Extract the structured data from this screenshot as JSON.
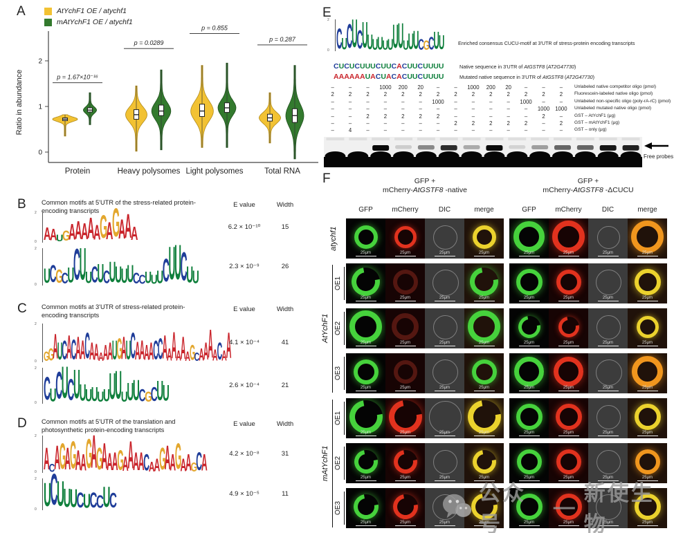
{
  "figure": {
    "bg": "#ffffff"
  },
  "panelA": {
    "label": "A"
  },
  "chart_data": {
    "type": "violin",
    "title": "",
    "ylabel": "Ratio in abundance",
    "ylim": [
      -0.3,
      2.6
    ],
    "yticks": [
      0,
      1,
      2
    ],
    "grid": false,
    "legend_position": "top-left",
    "categories": [
      "Protein",
      "Heavy polysomes",
      "Light polysomes",
      "Total RNA"
    ],
    "series": [
      {
        "name": "AtYchF1 OE / atychf1",
        "color": "#F2C233",
        "stroke": "#b08a1a",
        "violins": [
          {
            "category": "Protein",
            "median": 0.72,
            "q1": 0.69,
            "q3": 0.75,
            "min": 0.35,
            "max": 0.82,
            "width": 1.0
          },
          {
            "category": "Heavy polysomes",
            "median": 0.82,
            "q1": 0.72,
            "q3": 0.93,
            "min": 0.02,
            "max": 1.45,
            "width": 0.85
          },
          {
            "category": "Light polysomes",
            "median": 0.9,
            "q1": 0.78,
            "q3": 1.05,
            "min": 0.1,
            "max": 1.9,
            "width": 0.9
          },
          {
            "category": "Total RNA",
            "median": 0.75,
            "q1": 0.68,
            "q3": 0.83,
            "min": 0.2,
            "max": 1.3,
            "width": 0.85
          }
        ]
      },
      {
        "name": "mAtYchF1 OE / atychf1",
        "color": "#337A2E",
        "stroke": "#1e4f1c",
        "violins": [
          {
            "category": "Protein",
            "median": 0.92,
            "q1": 0.88,
            "q3": 0.97,
            "min": 0.6,
            "max": 1.3,
            "width": 0.5
          },
          {
            "category": "Heavy polysomes",
            "median": 0.9,
            "q1": 0.8,
            "q3": 1.03,
            "min": 0.05,
            "max": 1.8,
            "width": 0.75
          },
          {
            "category": "Light polysomes",
            "median": 0.97,
            "q1": 0.87,
            "q3": 1.08,
            "min": 0.1,
            "max": 1.95,
            "width": 0.7
          },
          {
            "category": "Total RNA",
            "median": 0.8,
            "q1": 0.65,
            "q3": 0.95,
            "min": -0.15,
            "max": 1.9,
            "width": 0.7
          }
        ]
      }
    ],
    "pvalues": [
      {
        "category": "Protein",
        "text": "p = 1.67×10⁻¹⁶"
      },
      {
        "category": "Heavy polysomes",
        "text": "p = 0.0289"
      },
      {
        "category": "Light polysomes",
        "text": "p = 0.855"
      },
      {
        "category": "Total RNA",
        "text": "p = 0.287"
      }
    ]
  },
  "motif_panels": [
    {
      "letter": "B",
      "title": "Common motifs at 5'UTR of the stress-related protein-encoding transcripts",
      "col_evalue": "E value",
      "col_width": "Width",
      "motifs": [
        {
          "evalue": "6.2 × 10⁻¹⁰",
          "width": "15",
          "seq": "AAUGAAAAAGAGAAA",
          "heights": [
            0.85,
            0.8,
            0.45,
            0.7,
            1.05,
            1.2,
            1.1,
            1.4,
            1.0,
            1.55,
            1.15,
            1.9,
            1.3,
            1.6,
            0.9
          ]
        },
        {
          "evalue": "2.3 × 10⁻⁹",
          "width": "26",
          "seq": "UCGCUCUUCUCUUUUCCUUUCUUCUU",
          "heights": [
            0.8,
            0.95,
            0.75,
            0.6,
            0.85,
            1.7,
            1.75,
            0.65,
            0.9,
            1.0,
            0.7,
            1.1,
            0.9,
            0.8,
            0.95,
            0.6,
            0.5,
            0.65,
            0.5,
            0.7,
            1.25,
            1.8,
            1.9,
            1.55,
            0.9,
            0.7
          ]
        }
      ]
    },
    {
      "letter": "C",
      "title": "Common motifs at 3'UTR of stress-related protein-encoding transcripts",
      "col_evalue": "E value",
      "col_width": "Width",
      "motifs": [
        {
          "evalue": "4.1 × 10⁻⁴",
          "width": "41",
          "seq": "GGAUCACAACAAAAAUGAUCAAAACCAAAAAAGCAAAACAA",
          "heights": [
            0.5,
            0.65,
            1.3,
            0.9,
            1.0,
            1.25,
            1.05,
            1.2,
            1.0,
            1.35,
            0.9,
            0.85,
            0.45,
            0.8,
            0.9,
            1.0,
            1.1,
            1.2,
            1.0,
            1.35,
            0.95,
            1.0,
            0.8,
            0.9,
            1.0,
            1.1,
            1.25,
            0.65,
            1.4,
            0.55,
            1.2,
            0.5,
            0.8,
            0.45,
            0.65,
            0.9,
            1.5,
            0.6,
            0.9,
            0.55,
            1.35
          ]
        },
        {
          "evalue": "2.6 × 10⁻⁴",
          "width": "21",
          "seq": "CUCUCUUUUUUUUUUUCGCUU",
          "heights": [
            1.3,
            0.75,
            1.55,
            1.8,
            1.2,
            1.65,
            0.95,
            0.7,
            0.8,
            0.6,
            0.7,
            1.5,
            1.6,
            0.6,
            1.0,
            1.15,
            0.7,
            0.6,
            0.8,
            1.1,
            0.9
          ]
        }
      ]
    },
    {
      "letter": "D",
      "title": "Common motifs at 5'UTR of the translation and photosynthetic protein-encoding transcripts",
      "col_evalue": "E value",
      "col_width": "Width",
      "motifs": [
        {
          "evalue": "4.2 × 10⁻⁸",
          "width": "31",
          "seq": "ACAGAGAAGAGAAAGAAAACAAGAAGAAGCA",
          "heights": [
            1.2,
            0.45,
            1.3,
            1.4,
            1.2,
            1.5,
            1.1,
            0.9,
            1.6,
            1.8,
            1.2,
            1.4,
            0.95,
            1.0,
            1.1,
            0.8,
            1.5,
            1.0,
            1.0,
            0.9,
            0.55,
            0.7,
            1.2,
            1.3,
            0.9,
            1.4,
            0.7,
            0.9,
            0.5,
            1.0,
            0.9
          ]
        },
        {
          "evalue": "4.9 × 10⁻⁵",
          "width": "11",
          "seq": "UCUUUCUCCUC",
          "heights": [
            1.5,
            2.0,
            1.6,
            1.2,
            1.15,
            1.0,
            0.9,
            1.0,
            0.8,
            1.3,
            0.95
          ]
        }
      ]
    }
  ],
  "panelE": {
    "label": "E",
    "logo": {
      "seq": "CUCUCUUUUUUUUUUUCGCUU",
      "heights": [
        1.3,
        0.75,
        1.55,
        1.8,
        1.2,
        1.65,
        0.95,
        0.7,
        0.8,
        0.6,
        0.7,
        1.5,
        1.6,
        0.6,
        1.0,
        1.15,
        0.7,
        0.6,
        0.8,
        1.1,
        0.9
      ],
      "caption": "Enriched consensus CUCU-motif at 3'UTR of stress-protein encoding transcripts"
    },
    "native": {
      "seq": "CUCUCUUUCUUCACUUCUUUU",
      "caption_pre": "Native sequence in 3'UTR of ",
      "gene": "AtGSTF8",
      "accession": "AT2G47730"
    },
    "mutated": {
      "seq": "AAAAAAUACUACACUUCUUUU",
      "caption_pre": "Mutated native sequence in 3'UTR of ",
      "gene": "AtGSTF8",
      "accession": "AT2G47730"
    },
    "assay_table": {
      "rows": [
        {
          "label": "Unlabeled native competitor oligo (pmol)",
          "values": [
            "–",
            "–",
            "–",
            "1000",
            "200",
            "20",
            "–",
            "–",
            "1000",
            "200",
            "20",
            "–",
            "–",
            "–"
          ]
        },
        {
          "label": "Fluorescein-labeled native oligo (pmol)",
          "values": [
            "2",
            "2",
            "2",
            "2",
            "2",
            "2",
            "2",
            "2",
            "2",
            "2",
            "2",
            "2",
            "2",
            "2"
          ]
        },
        {
          "label": "Unlabeled non-specific oligo (poly-rA-rC) (pmol)",
          "values": [
            "–",
            "–",
            "–",
            "–",
            "–",
            "–",
            "1000",
            "–",
            "–",
            "–",
            "–",
            "1000",
            "–",
            "–"
          ]
        },
        {
          "label": "Unlabeled mutated native oligo (pmol)",
          "values": [
            "–",
            "–",
            "–",
            "–",
            "–",
            "–",
            "–",
            "–",
            "–",
            "–",
            "–",
            "–",
            "1000",
            "1000"
          ]
        },
        {
          "label": "GST – AtYchF1  (μg)",
          "values": [
            "–",
            "–",
            "2",
            "2",
            "2",
            "2",
            "2",
            "–",
            "–",
            "–",
            "–",
            "–",
            "2",
            "–"
          ]
        },
        {
          "label": "GST – mAtYchF1 (μg)",
          "values": [
            "–",
            "–",
            "–",
            "–",
            "–",
            "–",
            "–",
            "2",
            "2",
            "2",
            "2",
            "2",
            "–",
            "2"
          ]
        },
        {
          "label": "GST – only  (μg)",
          "values": [
            "–",
            "4",
            "–",
            "–",
            "–",
            "–",
            "–",
            "–",
            "–",
            "–",
            "–",
            "–",
            "–",
            "–"
          ]
        }
      ]
    },
    "gel": {
      "band_intensity": [
        0,
        0,
        1,
        0.15,
        0.45,
        0.85,
        0.3,
        1,
        0.12,
        0.35,
        0.6,
        0.6,
        0.95,
        0.9
      ],
      "free_probes_label": "Free probes"
    }
  },
  "panelF": {
    "label": "F",
    "groups": [
      {
        "line1": "GFP +",
        "line2_pre": "mCherry-",
        "line2_gene": "AtGSTF8",
        "line2_suf": " -native"
      },
      {
        "line1": "GFP +",
        "line2_pre": "mCherry-",
        "line2_gene": "AtGSTF8",
        "line2_suf": " -ΔCUCU"
      }
    ],
    "channels": [
      "GFP",
      "mCherry",
      "DIC",
      "merge"
    ],
    "scale_bar": "25μm",
    "row_groups": [
      {
        "label": "atychf1",
        "rows": [
          {
            "sub": "",
            "native": [
              "ring green 0.5",
              "ring red 0.45",
              "dic 0.5",
              "ring yellow 0.5"
            ],
            "dcucu": [
              "ring green 0.8",
              "ring red 0.85",
              "dic 0.45",
              "ring orange 0.85"
            ]
          }
        ]
      },
      {
        "label": "AtYchF1",
        "rows": [
          {
            "sub": "OE1",
            "native": [
              "crescent green 0.7",
              "ring dimred 0.55",
              "dic 0.6",
              "crescent green 0.7"
            ],
            "dcucu": [
              "ring green 0.6",
              "ring red 0.55",
              "dic 0.55",
              "ring yellow 0.6"
            ]
          },
          {
            "sub": "OE2",
            "native": [
              "ring green 0.85",
              "ring dimred 0.65",
              "dic 0.5",
              "ring green 0.85"
            ],
            "dcucu": [
              "crescent green 0.45",
              "crescent red 0.4",
              "dic 0.5",
              "ring yellow 0.45"
            ]
          },
          {
            "sub": "OE3",
            "native": [
              "ring green 0.55",
              "ring dimred 0.5",
              "dic 0.55",
              "ring green 0.55"
            ],
            "dcucu": [
              "ring green 0.75",
              "ring red 0.75",
              "dic 0.6",
              "ring orange 0.8"
            ]
          }
        ]
      },
      {
        "label": "mAtYchF1",
        "rows": [
          {
            "sub": "OE1",
            "native": [
              "crescent green 0.9",
              "crescent red 0.9",
              "dic 0.85",
              "crescent yellow 0.9"
            ],
            "dcucu": [
              "ring green 0.6",
              "ring red 0.6",
              "dic 0.5",
              "ring yellow 0.6"
            ]
          },
          {
            "sub": "OE2",
            "native": [
              "crescent green 0.5",
              "crescent red 0.5",
              "dic 0.5",
              "crescent yellow 0.5"
            ],
            "dcucu": [
              "ring green 0.55",
              "ring red 0.55",
              "dic 0.5",
              "ring orange 0.55"
            ]
          },
          {
            "sub": "OE3",
            "native": [
              "crescent green 0.55",
              "crescent red 0.55",
              "dic 0.55",
              "crescent yellow 0.6"
            ],
            "dcucu": [
              "ring green 0.6",
              "ring red 0.6",
              "dic 0.55",
              "ring yellow 0.6"
            ]
          }
        ]
      }
    ]
  },
  "watermark": {
    "icon": "wechat-icon",
    "text_left": "公众号",
    "dash": "—",
    "text_right": "新使生物",
    "color": "#9c9c9c"
  }
}
